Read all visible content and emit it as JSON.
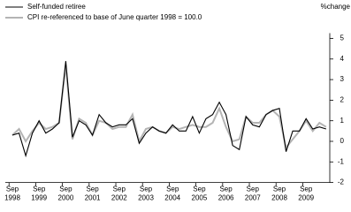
{
  "chart_data": {
    "type": "line",
    "y_label": "%change",
    "categories": [
      "Sep 1998",
      null,
      null,
      null,
      "Sep 1999",
      null,
      null,
      null,
      "Sep 2000",
      null,
      null,
      null,
      "Sep 2001",
      null,
      null,
      null,
      "Sep 2002",
      null,
      null,
      null,
      "Sep 2003",
      null,
      null,
      null,
      "Sep 2004",
      null,
      null,
      null,
      "Sep 2005",
      null,
      null,
      null,
      "Sep 2006",
      null,
      null,
      null,
      "Sep 2007",
      null,
      null,
      null,
      "Sep 2008",
      null,
      null,
      null,
      "Sep 2009",
      null,
      null,
      null
    ],
    "series": [
      {
        "name": "Self-funded retiree",
        "color": "#000000",
        "values": [
          0.3,
          0.4,
          -0.7,
          0.4,
          1.0,
          0.4,
          0.6,
          0.9,
          3.9,
          0.2,
          1.0,
          0.8,
          0.3,
          1.3,
          0.9,
          0.7,
          0.8,
          0.8,
          1.1,
          -0.1,
          0.4,
          0.7,
          0.5,
          0.4,
          0.8,
          0.5,
          0.5,
          1.2,
          0.4,
          1.1,
          1.3,
          1.9,
          1.3,
          -0.2,
          -0.4,
          1.2,
          0.8,
          0.7,
          1.3,
          1.5,
          1.6,
          -0.5,
          0.5,
          0.5,
          1.1,
          0.6,
          0.7,
          0.6
        ]
      },
      {
        "name": "CPI re-referenced to base of June quarter 1998 = 100.0",
        "color": "#b4b4b4",
        "values": [
          0.3,
          0.6,
          0.0,
          0.5,
          0.9,
          0.6,
          0.7,
          0.9,
          3.7,
          0.1,
          1.1,
          0.9,
          0.3,
          1.0,
          0.9,
          0.6,
          0.7,
          0.7,
          1.3,
          0.0,
          0.6,
          0.7,
          0.5,
          0.4,
          0.7,
          0.6,
          0.7,
          0.8,
          0.7,
          0.7,
          0.9,
          1.6,
          0.7,
          0.0,
          0.1,
          1.2,
          0.9,
          0.9,
          1.3,
          1.5,
          1.2,
          -0.3,
          0.1,
          0.5,
          1.0,
          0.5,
          0.9,
          0.7
        ]
      }
    ],
    "ylim": [
      -2,
      5
    ],
    "yticks": [
      -2,
      -1,
      0,
      1,
      2,
      3,
      4,
      5
    ]
  }
}
